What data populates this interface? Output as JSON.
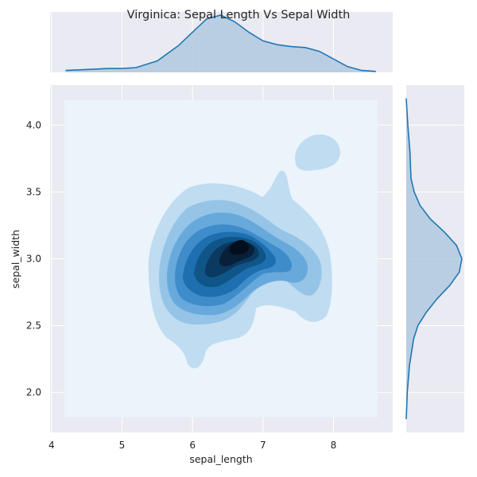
{
  "chart_data": {
    "type": "kde-joint",
    "title": "Virginica: Sepal Length Vs Sepal Width",
    "xlabel": "sepal_length",
    "ylabel": "sepal_width",
    "xlim": [
      3.98,
      8.84
    ],
    "ylim": [
      1.7,
      4.3
    ],
    "xticks": [
      4,
      5,
      6,
      7,
      8
    ],
    "yticks": [
      2.0,
      2.5,
      3.0,
      3.5,
      4.0
    ],
    "grid": true,
    "kde_extent": {
      "x": [
        4.2,
        8.6
      ],
      "y": [
        1.8,
        4.2
      ]
    },
    "density_peak": {
      "x": 6.6,
      "y": 3.1
    },
    "marginal_x": {
      "x": [
        4.2,
        4.5,
        4.8,
        5.0,
        5.2,
        5.5,
        5.8,
        6.0,
        6.2,
        6.4,
        6.6,
        6.8,
        7.0,
        7.2,
        7.4,
        7.6,
        7.8,
        8.0,
        8.2,
        8.4,
        8.6
      ],
      "density": [
        0.02,
        0.03,
        0.04,
        0.04,
        0.05,
        0.12,
        0.28,
        0.42,
        0.56,
        0.6,
        0.53,
        0.42,
        0.33,
        0.29,
        0.27,
        0.26,
        0.22,
        0.14,
        0.06,
        0.02,
        0.01
      ]
    },
    "marginal_y": {
      "y": [
        1.8,
        2.0,
        2.2,
        2.4,
        2.5,
        2.6,
        2.7,
        2.8,
        2.9,
        3.0,
        3.1,
        3.2,
        3.3,
        3.4,
        3.5,
        3.6,
        3.7,
        3.8,
        3.9,
        4.0,
        4.2
      ],
      "density": [
        0.0,
        0.02,
        0.06,
        0.14,
        0.22,
        0.38,
        0.58,
        0.82,
        1.0,
        1.05,
        0.95,
        0.72,
        0.45,
        0.26,
        0.15,
        0.09,
        0.08,
        0.07,
        0.05,
        0.03,
        0.0
      ]
    },
    "colors": {
      "background": "#eaeaf2",
      "grid": "#ffffff",
      "kde_base": "#ebf3fb",
      "levels": [
        "#bfdcf0",
        "#95c4e6",
        "#68a9dc",
        "#3f8ccb",
        "#1d6fb0",
        "#0f5588",
        "#0b3a60",
        "#08203a",
        "#040f1d"
      ],
      "marginal_line": "#1f77b4",
      "marginal_fill": "#b0c9df"
    }
  }
}
